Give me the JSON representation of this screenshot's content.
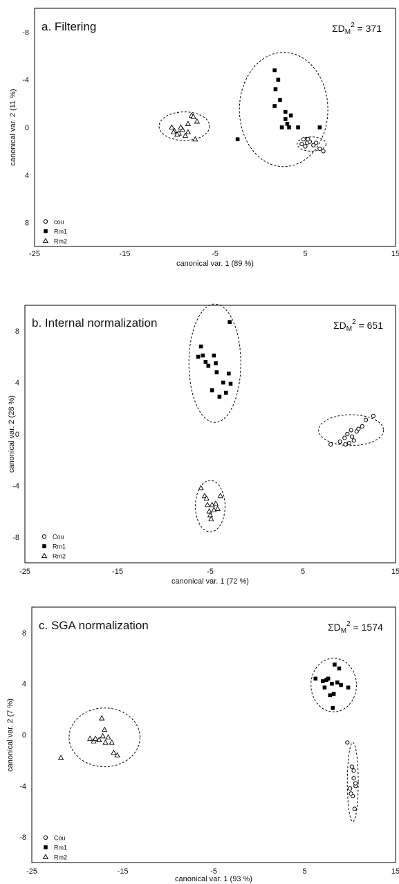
{
  "chart_data": [
    {
      "type": "scatter",
      "title": "a. Filtering",
      "stat_label": "ΣD",
      "stat_sub": "M",
      "stat_sup": "2",
      "stat_value": " = 371",
      "xlabel": "canonical var. 1 (89 %)",
      "ylabel": "canonical var. 2 (11 %)",
      "xlim": [
        -25,
        15
      ],
      "ylim": [
        10,
        -10
      ],
      "xticks": [
        "-25",
        "-15",
        "-5",
        "5",
        "15"
      ],
      "xtick_values": [
        -25,
        -15,
        -5,
        5,
        15
      ],
      "yticks": [
        "-8",
        "-4",
        "0",
        "4",
        "8"
      ],
      "ytick_values": [
        -8,
        -4,
        0,
        4,
        8
      ],
      "y_inverted": true,
      "legend_position": "bottom-left",
      "series": [
        {
          "name": "cou",
          "marker": "circle",
          "points": [
            [
              4.8,
              1.0
            ],
            [
              5.2,
              1.3
            ],
            [
              5.5,
              1.2
            ],
            [
              5.9,
              1.5
            ],
            [
              4.6,
              1.4
            ],
            [
              5.0,
              1.6
            ],
            [
              6.2,
              1.3
            ],
            [
              6.6,
              1.8
            ],
            [
              7.0,
              2.0
            ],
            [
              5.3,
              1.0
            ]
          ]
        },
        {
          "name": "Rm1",
          "marker": "square",
          "points": [
            [
              1.6,
              -4.8
            ],
            [
              2.0,
              -4.0
            ],
            [
              1.7,
              -3.2
            ],
            [
              2.2,
              -2.3
            ],
            [
              1.6,
              -1.8
            ],
            [
              2.8,
              -1.3
            ],
            [
              3.4,
              -1.0
            ],
            [
              2.8,
              -0.7
            ],
            [
              3.0,
              -0.3
            ],
            [
              2.4,
              0.0
            ],
            [
              3.2,
              0.0
            ],
            [
              4.2,
              0.0
            ],
            [
              6.6,
              0.0
            ],
            [
              -2.5,
              1.0
            ]
          ]
        },
        {
          "name": "Rm2",
          "marker": "triangle",
          "points": [
            [
              -9.8,
              0.0
            ],
            [
              -9.5,
              0.3
            ],
            [
              -9.0,
              0.5
            ],
            [
              -8.6,
              0.2
            ],
            [
              -8.0,
              -0.3
            ],
            [
              -7.6,
              -1.0
            ],
            [
              -7.4,
              -0.9
            ],
            [
              -7.0,
              -0.5
            ],
            [
              -9.2,
              0.6
            ],
            [
              -8.3,
              0.7
            ],
            [
              -7.2,
              1.0
            ],
            [
              -9.6,
              0.4
            ],
            [
              -8.8,
              0.0
            ],
            [
              -8.0,
              0.4
            ]
          ]
        }
      ],
      "ellipses": [
        {
          "cx": 2.6,
          "cy": -1.5,
          "rx": 4.9,
          "ry": 4.8
        },
        {
          "cx": -8.4,
          "cy": -0.1,
          "rx": 2.8,
          "ry": 1.2
        },
        {
          "cx": 5.7,
          "cy": 1.4,
          "rx": 1.6,
          "ry": 0.6
        }
      ]
    },
    {
      "type": "scatter",
      "title": "b. Internal normalization",
      "stat_label": "ΣD",
      "stat_sub": "M",
      "stat_sup": "2",
      "stat_value": " = 651",
      "xlabel": "canonical var. 1 (72 %)",
      "ylabel": "canonical var. 2 (28 %)",
      "xlim": [
        -25,
        15
      ],
      "ylim": [
        10,
        -10
      ],
      "xticks": [
        "-25",
        "-15",
        "-5",
        "5",
        "15"
      ],
      "xtick_values": [
        -25,
        -15,
        -5,
        5,
        15
      ],
      "yticks": [
        "8",
        "4",
        "0",
        "-4",
        "-8"
      ],
      "ytick_values": [
        8,
        4,
        0,
        -4,
        -8
      ],
      "y_inverted": false,
      "legend_position": "bottom-left",
      "series": [
        {
          "name": "Cou",
          "marker": "circle",
          "points": [
            [
              8.0,
              -0.8
            ],
            [
              9.0,
              -0.6
            ],
            [
              9.5,
              -0.3
            ],
            [
              9.8,
              0.0
            ],
            [
              10.0,
              -0.7
            ],
            [
              10.2,
              0.3
            ],
            [
              10.5,
              -0.5
            ],
            [
              10.8,
              0.2
            ],
            [
              11.0,
              0.4
            ],
            [
              11.4,
              0.6
            ],
            [
              11.8,
              1.1
            ],
            [
              12.6,
              1.4
            ],
            [
              9.6,
              -0.8
            ],
            [
              10.3,
              -0.2
            ]
          ]
        },
        {
          "name": "Rm1",
          "marker": "square",
          "points": [
            [
              -6.3,
              6.0
            ],
            [
              -6.0,
              6.8
            ],
            [
              -5.8,
              6.1
            ],
            [
              -5.5,
              5.6
            ],
            [
              -5.2,
              5.3
            ],
            [
              -4.6,
              6.1
            ],
            [
              -4.4,
              5.5
            ],
            [
              -4.3,
              4.8
            ],
            [
              -3.6,
              4.0
            ],
            [
              -3.3,
              3.2
            ],
            [
              -3.0,
              4.7
            ],
            [
              -2.8,
              3.9
            ],
            [
              -4.0,
              2.9
            ],
            [
              -4.8,
              3.4
            ],
            [
              -2.9,
              8.7
            ]
          ]
        },
        {
          "name": "Rm2",
          "marker": "triangle",
          "points": [
            [
              -6.0,
              -4.2
            ],
            [
              -5.6,
              -4.8
            ],
            [
              -5.3,
              -5.5
            ],
            [
              -5.1,
              -6.0
            ],
            [
              -5.0,
              -6.3
            ],
            [
              -4.8,
              -5.5
            ],
            [
              -4.6,
              -5.9
            ],
            [
              -4.4,
              -5.4
            ],
            [
              -4.2,
              -5.8
            ],
            [
              -3.9,
              -4.8
            ],
            [
              -5.4,
              -5.0
            ],
            [
              -4.9,
              -6.6
            ]
          ]
        }
      ],
      "ellipses": [
        {
          "cx": -4.5,
          "cy": 5.5,
          "rx": 2.8,
          "ry": 4.6
        },
        {
          "cx": 10.2,
          "cy": 0.3,
          "rx": 3.5,
          "ry": 1.2
        },
        {
          "cx": -5.0,
          "cy": -5.6,
          "rx": 1.6,
          "ry": 2.0
        }
      ]
    },
    {
      "type": "scatter",
      "title": "c. SGA normalization",
      "stat_label": "ΣD",
      "stat_sub": "M",
      "stat_sup": "2",
      "stat_value": " = 1574",
      "xlabel": "canonical var. 1 (93 %)",
      "ylabel": "canonical var. 2 (7 %)",
      "xlim": [
        -25,
        15
      ],
      "ylim": [
        10,
        -10
      ],
      "xticks": [
        "-25",
        "-15",
        "-5",
        "5",
        "15"
      ],
      "xtick_values": [
        -25,
        -15,
        -5,
        5,
        15
      ],
      "yticks": [
        "8",
        "4",
        "0",
        "-4",
        "-8"
      ],
      "ytick_values": [
        8,
        4,
        0,
        -4,
        -8
      ],
      "y_inverted": false,
      "legend_position": "bottom-left",
      "series": [
        {
          "name": "Cou",
          "marker": "circle",
          "points": [
            [
              9.7,
              -0.6
            ],
            [
              10.2,
              -2.5
            ],
            [
              10.4,
              -3.4
            ],
            [
              10.6,
              -4.0
            ],
            [
              10.3,
              -4.8
            ],
            [
              10.6,
              -3.8
            ],
            [
              10.5,
              -5.8
            ],
            [
              10.0,
              -4.2
            ],
            [
              10.4,
              -2.8
            ],
            [
              10.1,
              -4.6
            ]
          ]
        },
        {
          "name": "Rm1",
          "marker": "square",
          "points": [
            [
              6.2,
              4.4
            ],
            [
              7.0,
              4.2
            ],
            [
              7.2,
              3.7
            ],
            [
              7.6,
              4.4
            ],
            [
              8.0,
              4.0
            ],
            [
              8.2,
              3.2
            ],
            [
              8.3,
              5.5
            ],
            [
              8.6,
              4.1
            ],
            [
              8.8,
              5.2
            ],
            [
              9.0,
              3.9
            ],
            [
              9.8,
              3.7
            ],
            [
              7.8,
              3.1
            ],
            [
              8.1,
              2.1
            ],
            [
              7.4,
              4.3
            ]
          ]
        },
        {
          "name": "Rm2",
          "marker": "triangle",
          "points": [
            [
              -21.8,
              -1.8
            ],
            [
              -18.6,
              -0.3
            ],
            [
              -18.2,
              -0.5
            ],
            [
              -17.6,
              -0.4
            ],
            [
              -17.2,
              -0.1
            ],
            [
              -17.0,
              0.4
            ],
            [
              -16.6,
              -0.2
            ],
            [
              -16.2,
              -0.6
            ],
            [
              -16.0,
              -1.4
            ],
            [
              -15.6,
              -1.6
            ],
            [
              -17.3,
              1.3
            ],
            [
              -18.0,
              -0.3
            ],
            [
              -16.9,
              -0.6
            ]
          ]
        }
      ],
      "ellipses": [
        {
          "cx": -17.0,
          "cy": -0.2,
          "rx": 3.9,
          "ry": 2.3
        },
        {
          "cx": 8.2,
          "cy": 3.9,
          "rx": 2.5,
          "ry": 2.1
        },
        {
          "cx": 10.3,
          "cy": -3.7,
          "rx": 0.6,
          "ry": 3.1
        }
      ]
    }
  ]
}
